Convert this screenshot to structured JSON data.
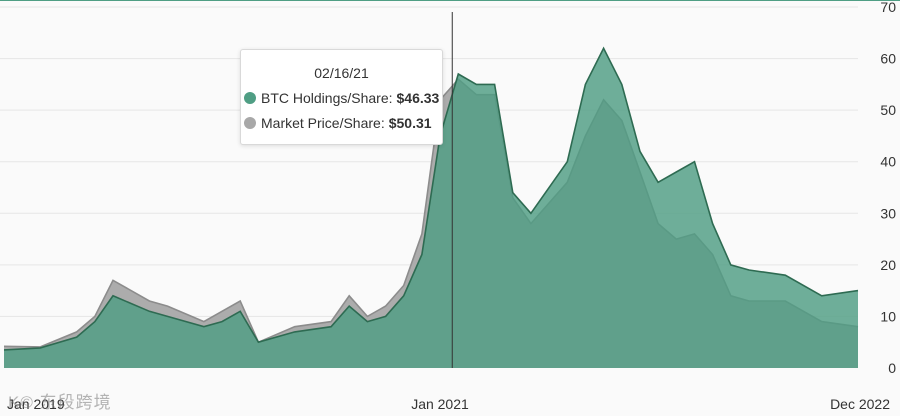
{
  "chart_data": {
    "type": "area",
    "x_axis": {
      "start": "2019-01",
      "end": "2022-12",
      "tick_labels": [
        "Jan 2019",
        "Jan 2021",
        "Dec 2022"
      ]
    },
    "y_axis": {
      "position": "right",
      "ylim": [
        0,
        70
      ],
      "ticks": [
        0,
        10,
        20,
        30,
        40,
        50,
        60,
        70
      ]
    },
    "grid": "horizontal",
    "legend": "none",
    "series": [
      {
        "name": "Market Price/Share",
        "color": "#a8a8a8",
        "x": [
          "2019-01",
          "2019-03",
          "2019-05",
          "2019-06",
          "2019-07",
          "2019-09",
          "2019-10",
          "2019-12",
          "2020-01",
          "2020-02",
          "2020-03",
          "2020-05",
          "2020-07",
          "2020-08",
          "2020-09",
          "2020-10",
          "2020-11",
          "2020-12",
          "2021-01",
          "2021-02",
          "2021-03",
          "2021-04",
          "2021-05",
          "2021-06",
          "2021-08",
          "2021-09",
          "2021-10",
          "2021-11",
          "2021-12",
          "2022-01",
          "2022-02",
          "2022-03",
          "2022-04",
          "2022-05",
          "2022-06",
          "2022-08",
          "2022-10",
          "2022-12"
        ],
        "values": [
          4.2,
          4.1,
          7,
          10,
          17,
          13,
          12,
          9,
          11,
          13,
          5,
          8,
          9,
          14,
          10,
          12,
          16,
          26,
          52,
          56,
          53,
          53,
          33,
          28,
          36,
          45,
          52,
          48,
          38,
          28,
          25,
          26,
          22,
          14,
          13,
          13,
          9,
          8
        ]
      },
      {
        "name": "BTC Holdings/Share",
        "color": "#4f9e84",
        "x": [
          "2019-01",
          "2019-03",
          "2019-05",
          "2019-06",
          "2019-07",
          "2019-09",
          "2019-10",
          "2019-12",
          "2020-01",
          "2020-02",
          "2020-03",
          "2020-05",
          "2020-07",
          "2020-08",
          "2020-09",
          "2020-10",
          "2020-11",
          "2020-12",
          "2021-01",
          "2021-02",
          "2021-03",
          "2021-04",
          "2021-05",
          "2021-06",
          "2021-08",
          "2021-09",
          "2021-10",
          "2021-11",
          "2021-12",
          "2022-01",
          "2022-02",
          "2022-03",
          "2022-04",
          "2022-05",
          "2022-06",
          "2022-08",
          "2022-10",
          "2022-12"
        ],
        "values": [
          3.5,
          3.9,
          6,
          9,
          14,
          11,
          10,
          8,
          9,
          11,
          5,
          7,
          8,
          12,
          9,
          10,
          14,
          22,
          45,
          57,
          55,
          55,
          34,
          30,
          40,
          55,
          62,
          55,
          42,
          36,
          38,
          40,
          28,
          20,
          19,
          18,
          14,
          15
        ]
      }
    ],
    "crosshair_date": "02/16/21",
    "tooltip": {
      "date": "02/16/21",
      "rows": [
        {
          "label": "BTC Holdings/Share:",
          "value": "$46.33",
          "color": "#4f9e84"
        },
        {
          "label": "Market Price/Share:",
          "value": "$50.31",
          "color": "#a8a8a8"
        }
      ]
    }
  },
  "watermark": "K© 东段跨境"
}
